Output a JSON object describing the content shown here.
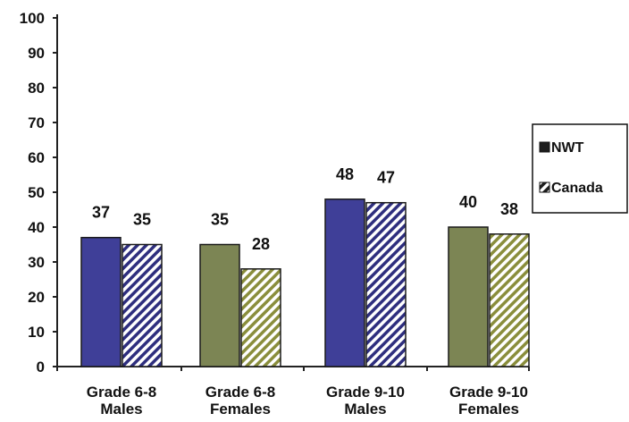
{
  "chart_data": {
    "type": "bar",
    "title": "",
    "xlabel": "",
    "ylabel": "",
    "ylim": [
      0,
      100
    ],
    "yticks": [
      0,
      10,
      20,
      30,
      40,
      50,
      60,
      70,
      80,
      90,
      100
    ],
    "grid": false,
    "legend_position": "right",
    "categories": [
      [
        "Grade 6-8",
        "Males"
      ],
      [
        "Grade 6-8",
        "Females"
      ],
      [
        "Grade 9-10",
        "Males"
      ],
      [
        "Grade 9-10",
        "Females"
      ]
    ],
    "series": [
      {
        "name": "NWT",
        "values": [
          37,
          35,
          48,
          40
        ],
        "fill": "solid",
        "colors": [
          "#3f3f98",
          "#7c8554",
          "#3f3f98",
          "#7c8554"
        ]
      },
      {
        "name": "Canada",
        "values": [
          35,
          28,
          47,
          38
        ],
        "fill": "hatched",
        "colors": [
          "#2e2e7e",
          "#8a8e3c",
          "#2e2e7e",
          "#8a8e3c"
        ]
      }
    ],
    "legend_swatch_colors": [
      "#1d1d1d",
      "#1d1d1d"
    ],
    "axis_color": "#222222"
  }
}
